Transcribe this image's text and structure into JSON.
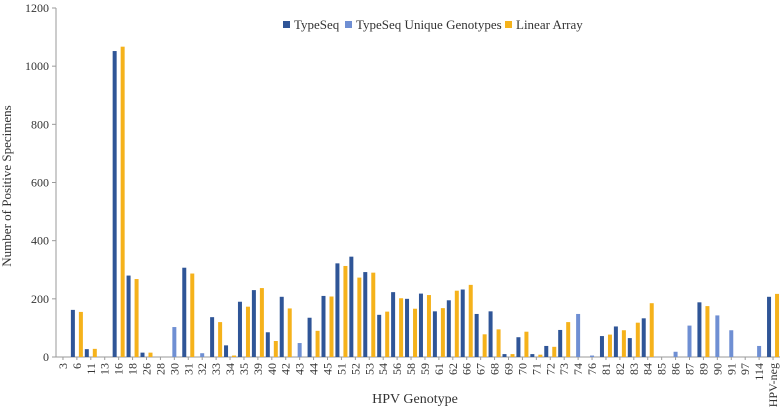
{
  "chart_data": {
    "type": "bar",
    "title": "",
    "xlabel": "HPV Genotype",
    "ylabel": "Number of Positive Specimens",
    "ylim": [
      0,
      1200
    ],
    "yticks": [
      0,
      200,
      400,
      600,
      800,
      1000,
      1200
    ],
    "grid": false,
    "legend_position": "top-center",
    "categories": [
      "3",
      "6",
      "11",
      "13",
      "16",
      "18",
      "26",
      "28",
      "30",
      "31",
      "32",
      "33",
      "34",
      "35",
      "39",
      "40",
      "42",
      "43",
      "44",
      "45",
      "51",
      "52",
      "53",
      "54",
      "56",
      "58",
      "59",
      "61",
      "62",
      "66",
      "67",
      "68",
      "69",
      "70",
      "71",
      "72",
      "73",
      "74",
      "76",
      "81",
      "82",
      "83",
      "84",
      "85",
      "86",
      "87",
      "89",
      "90",
      "91",
      "97",
      "114",
      "HPV-neg"
    ],
    "series": [
      {
        "name": "TypeSeq",
        "color": "#2f5597",
        "values": [
          0,
          162,
          27,
          0,
          1052,
          280,
          15,
          0,
          0,
          307,
          0,
          137,
          40,
          190,
          230,
          85,
          207,
          0,
          135,
          210,
          322,
          345,
          292,
          145,
          223,
          200,
          218,
          157,
          195,
          232,
          148,
          157,
          10,
          68,
          10,
          38,
          93,
          0,
          0,
          72,
          105,
          65,
          133,
          0,
          0,
          0,
          188,
          0,
          0,
          0,
          0,
          207
        ]
      },
      {
        "name": "TypeSeq Unique Genotypes",
        "color": "#6f8fd3",
        "values": [
          0,
          0,
          0,
          0,
          0,
          0,
          0,
          0,
          103,
          0,
          13,
          0,
          0,
          0,
          0,
          0,
          0,
          48,
          0,
          0,
          0,
          0,
          0,
          0,
          0,
          0,
          0,
          0,
          0,
          0,
          0,
          0,
          0,
          0,
          0,
          0,
          0,
          148,
          5,
          0,
          0,
          0,
          0,
          0,
          18,
          108,
          0,
          143,
          92,
          0,
          38,
          0
        ]
      },
      {
        "name": "Linear Array",
        "color": "#f5b21b",
        "values": [
          0,
          155,
          28,
          0,
          1067,
          268,
          15,
          0,
          0,
          287,
          0,
          120,
          5,
          173,
          237,
          55,
          167,
          0,
          90,
          208,
          313,
          273,
          290,
          156,
          202,
          166,
          213,
          168,
          228,
          248,
          78,
          95,
          10,
          87,
          8,
          35,
          120,
          0,
          0,
          77,
          92,
          118,
          185,
          0,
          0,
          0,
          175,
          0,
          0,
          0,
          0,
          217
        ]
      }
    ]
  }
}
